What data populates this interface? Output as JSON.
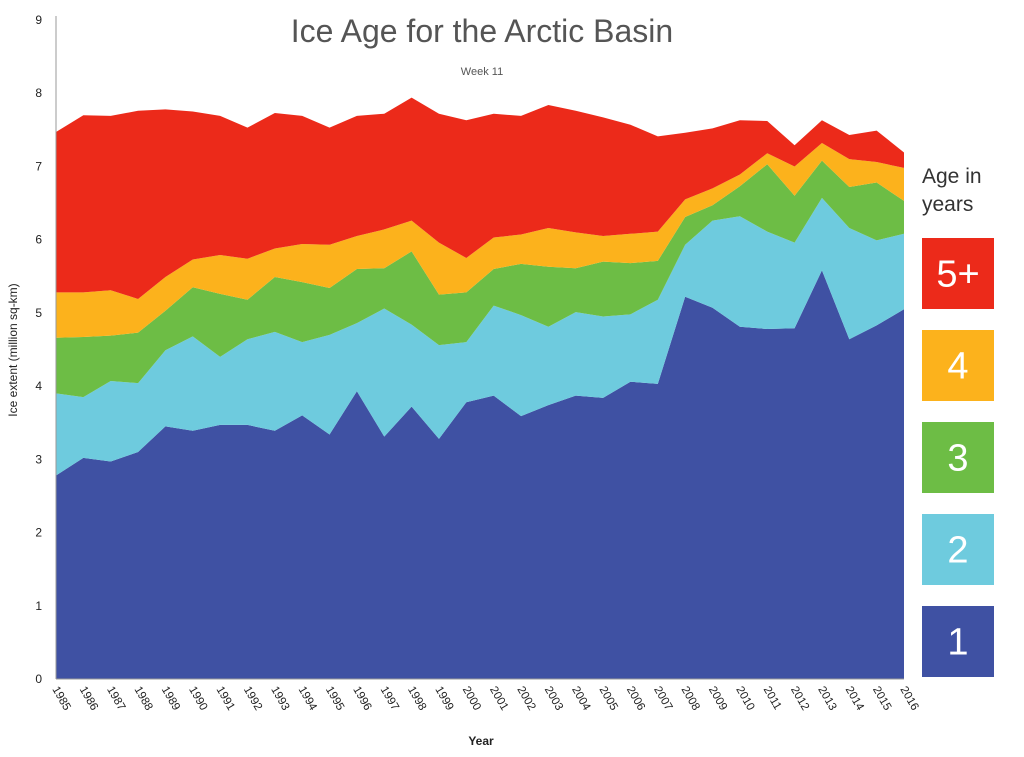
{
  "chart_data": {
    "type": "area",
    "stacked": true,
    "title": "Ice Age for the Arctic Basin",
    "subtitle": "Week 11",
    "xlabel": "Year",
    "ylabel": "Ice extent (million sq-km)",
    "ylim": [
      0,
      9
    ],
    "yticks": [
      0,
      1,
      2,
      3,
      4,
      5,
      6,
      7,
      8,
      9
    ],
    "grid": false,
    "legend": {
      "title_line1": "Age in",
      "title_line2": "years",
      "placement": "right"
    },
    "x": [
      1985,
      1986,
      1987,
      1988,
      1989,
      1990,
      1991,
      1992,
      1993,
      1994,
      1995,
      1996,
      1997,
      1998,
      1999,
      2000,
      2001,
      2002,
      2003,
      2004,
      2005,
      2006,
      2007,
      2008,
      2009,
      2010,
      2011,
      2012,
      2013,
      2014,
      2015,
      2016
    ],
    "series": [
      {
        "name": "1",
        "color": "#3f51a3",
        "values": [
          2.78,
          3.02,
          2.97,
          3.1,
          3.45,
          3.39,
          3.47,
          3.47,
          3.39,
          3.6,
          3.34,
          3.93,
          3.31,
          3.72,
          3.28,
          3.78,
          3.87,
          3.59,
          3.74,
          3.87,
          3.84,
          4.06,
          4.03,
          5.22,
          5.07,
          4.81,
          4.78,
          4.79,
          5.58,
          4.64,
          4.83,
          5.05
        ]
      },
      {
        "name": "2",
        "color": "#6ecbde",
        "values": [
          1.12,
          0.83,
          1.1,
          0.94,
          1.04,
          1.29,
          0.93,
          1.17,
          1.35,
          1.0,
          1.36,
          0.93,
          1.75,
          1.12,
          1.28,
          0.82,
          1.23,
          1.38,
          1.07,
          1.14,
          1.11,
          0.92,
          1.15,
          0.71,
          1.19,
          1.51,
          1.33,
          1.17,
          0.99,
          1.52,
          1.16,
          1.03
        ]
      },
      {
        "name": "3",
        "color": "#6dbd45",
        "values": [
          0.76,
          0.82,
          0.62,
          0.69,
          0.54,
          0.67,
          0.86,
          0.54,
          0.75,
          0.82,
          0.64,
          0.74,
          0.55,
          1.0,
          0.69,
          0.68,
          0.5,
          0.7,
          0.82,
          0.6,
          0.75,
          0.7,
          0.53,
          0.38,
          0.21,
          0.41,
          0.92,
          0.64,
          0.51,
          0.56,
          0.79,
          0.45
        ]
      },
      {
        "name": "4",
        "color": "#fcb21c",
        "values": [
          0.62,
          0.61,
          0.62,
          0.46,
          0.46,
          0.38,
          0.53,
          0.56,
          0.39,
          0.52,
          0.59,
          0.45,
          0.53,
          0.42,
          0.71,
          0.47,
          0.43,
          0.4,
          0.53,
          0.49,
          0.35,
          0.4,
          0.4,
          0.24,
          0.23,
          0.16,
          0.15,
          0.4,
          0.24,
          0.38,
          0.28,
          0.45
        ]
      },
      {
        "name": "5+",
        "color": "#ec2a1a",
        "values": [
          2.19,
          2.42,
          2.38,
          2.57,
          2.29,
          2.02,
          1.9,
          1.79,
          1.85,
          1.75,
          1.6,
          1.64,
          1.58,
          1.68,
          1.76,
          1.88,
          1.69,
          1.62,
          1.68,
          1.66,
          1.62,
          1.49,
          1.3,
          0.91,
          0.82,
          0.74,
          0.44,
          0.29,
          0.31,
          0.33,
          0.43,
          0.21
        ]
      }
    ]
  }
}
